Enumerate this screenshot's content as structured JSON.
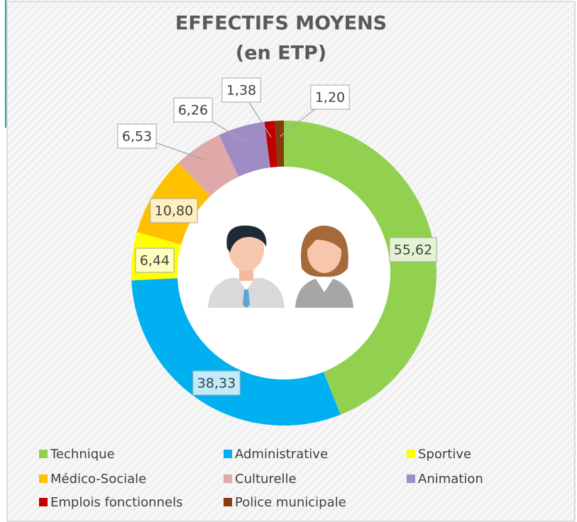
{
  "chart_data": {
    "type": "donut",
    "title": "EFFECTIFS MOYENS",
    "subtitle": "(en ETP)",
    "categories": [
      "Technique",
      "Administrative",
      "Sportive",
      "Médico-Sociale",
      "Culturelle",
      "Animation",
      "Emplois fonctionnels",
      "Police municipale"
    ],
    "values": [
      55.62,
      38.33,
      6.44,
      10.8,
      6.53,
      6.26,
      1.38,
      1.2
    ],
    "value_labels": [
      "55,62",
      "38,33",
      "6,44",
      "10,80",
      "6,53",
      "6,26",
      "1,38",
      "1,20"
    ],
    "colors": [
      "#92d050",
      "#00b0f0",
      "#ffff00",
      "#ffc000",
      "#dfa9a9",
      "#a08cc4",
      "#c00000",
      "#843c0c"
    ]
  }
}
